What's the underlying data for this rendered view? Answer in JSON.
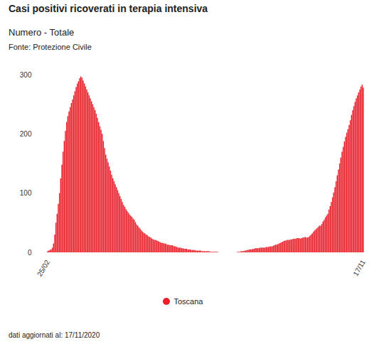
{
  "chart_data": {
    "type": "bar",
    "title": "Casi positivi ricoverati in terapia intensiva",
    "subtitle": "Numero - Totale",
    "source": "Fonte: Protezione Civile",
    "caption": "dati aggiornati al: 17/11/2020",
    "categories": [
      "25/02",
      null,
      null,
      null,
      null,
      null,
      null,
      null,
      null,
      null,
      null,
      null,
      null,
      null,
      null,
      null,
      null,
      null,
      null,
      null,
      null,
      null,
      null,
      null,
      null,
      null,
      null,
      null,
      null,
      null,
      null,
      null,
      null,
      null,
      null,
      null,
      null,
      null,
      null,
      null,
      null,
      null,
      null,
      null,
      null,
      null,
      null,
      null,
      null,
      null,
      null,
      null,
      null,
      null,
      null,
      null,
      null,
      null,
      null,
      null,
      null,
      null,
      null,
      null,
      null,
      null,
      null,
      null,
      null,
      null,
      null,
      null,
      null,
      null,
      null,
      null,
      null,
      null,
      null,
      null,
      null,
      null,
      null,
      null,
      null,
      null,
      null,
      null,
      null,
      null,
      null,
      null,
      null,
      null,
      null,
      null,
      null,
      null,
      null,
      null,
      null,
      null,
      null,
      null,
      null,
      null,
      null,
      null,
      null,
      null,
      null,
      null,
      null,
      null,
      null,
      null,
      null,
      null,
      null,
      null,
      null,
      null,
      null,
      null,
      null,
      null,
      null,
      null,
      null,
      null,
      null,
      null,
      null,
      null,
      null,
      null,
      null,
      null,
      null,
      null,
      null,
      null,
      null,
      null,
      null,
      null,
      null,
      null,
      null,
      null,
      null,
      null,
      null,
      null,
      null,
      null,
      null,
      null,
      null,
      null,
      null,
      null,
      null,
      null,
      null,
      null,
      null,
      null,
      null,
      null,
      null,
      null,
      null,
      null,
      null,
      null,
      null,
      null,
      null,
      null,
      null,
      null,
      null,
      null,
      null,
      null,
      null,
      null,
      null,
      null,
      null,
      null,
      null,
      null,
      null,
      null,
      null,
      null,
      null,
      null,
      null,
      null,
      null,
      null,
      null,
      null,
      null,
      null,
      null,
      null,
      null,
      null,
      null,
      null,
      null,
      null,
      null,
      null,
      null,
      null,
      null,
      null,
      null,
      null,
      null,
      null,
      null,
      null,
      null,
      null,
      null,
      null,
      null,
      null,
      null,
      null,
      null,
      null,
      null,
      null,
      null,
      null,
      null,
      null,
      null,
      null,
      null,
      null,
      null,
      null,
      null,
      null,
      null,
      null,
      null,
      null,
      null,
      null,
      null,
      null,
      null,
      null,
      null,
      null,
      null,
      null,
      "17/11"
    ],
    "series": [
      {
        "name": "Toscana",
        "color": "#e8202a",
        "values": [
          2,
          3,
          4,
          5,
          8,
          15,
          30,
          50,
          65,
          82,
          100,
          125,
          148,
          170,
          188,
          205,
          220,
          230,
          238,
          245,
          252,
          258,
          265,
          272,
          279,
          285,
          289,
          294,
          297,
          295,
          290,
          285,
          280,
          275,
          270,
          265,
          260,
          255,
          250,
          245,
          240,
          234,
          227,
          220,
          213,
          207,
          200,
          188,
          176,
          165,
          158,
          152,
          145,
          138,
          131,
          125,
          120,
          115,
          110,
          105,
          100,
          95,
          90,
          85,
          80,
          77,
          73,
          70,
          67,
          64,
          62,
          60,
          57,
          55,
          51,
          47,
          45,
          42,
          40,
          37,
          35,
          33,
          32,
          30,
          29,
          27,
          26,
          25,
          23,
          22,
          21,
          21,
          20,
          19,
          18,
          17,
          16,
          16,
          15,
          15,
          14,
          13,
          13,
          12,
          12,
          12,
          11,
          10,
          10,
          9,
          8,
          8,
          8,
          7,
          7,
          6,
          6,
          6,
          5,
          5,
          5,
          4,
          4,
          4,
          4,
          3,
          3,
          3,
          3,
          3,
          2,
          2,
          2,
          2,
          2,
          2,
          2,
          1,
          1,
          1,
          1,
          1,
          1,
          1,
          0,
          0,
          0,
          0,
          0,
          0,
          0,
          0,
          0,
          0,
          0,
          0,
          0,
          0,
          0,
          0,
          1,
          1,
          1,
          2,
          2,
          2,
          3,
          3,
          4,
          4,
          5,
          5,
          5,
          6,
          6,
          7,
          7,
          7,
          7,
          8,
          8,
          8,
          8,
          8,
          9,
          9,
          9,
          10,
          10,
          10,
          11,
          12,
          13,
          13,
          14,
          15,
          16,
          17,
          18,
          19,
          20,
          20,
          21,
          21,
          21,
          22,
          22,
          23,
          23,
          23,
          24,
          24,
          24,
          23,
          24,
          25,
          25,
          26,
          25,
          25,
          26,
          28,
          30,
          32,
          35,
          37,
          39,
          41,
          43,
          45,
          45,
          48,
          52,
          55,
          59,
          62,
          65,
          72,
          78,
          85,
          93,
          101,
          110,
          120,
          130,
          140,
          150,
          160,
          170,
          178,
          187,
          195,
          202,
          208,
          215,
          223,
          232,
          240,
          247,
          254,
          260,
          265,
          270,
          275,
          280,
          283,
          278
        ]
      }
    ],
    "ylim": [
      0,
      300
    ],
    "yticks": [
      0,
      100,
      200,
      300
    ],
    "grid": false,
    "legend": "bottom"
  }
}
